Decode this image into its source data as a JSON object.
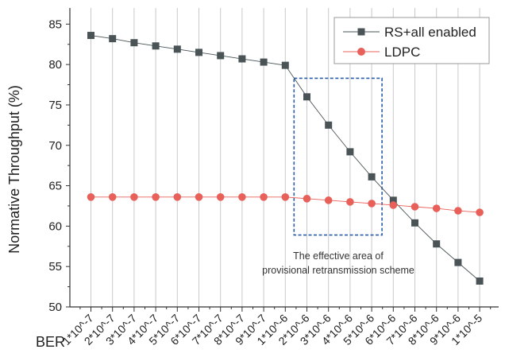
{
  "chart_data": {
    "type": "line",
    "xlabel": "BER",
    "ylabel": "Normative Throughput (%)",
    "ylim": [
      50,
      87
    ],
    "yticks": [
      50,
      55,
      60,
      65,
      70,
      75,
      80,
      85
    ],
    "grid": "vertical",
    "legend_position": "top-right",
    "categories": [
      "1*10^-7",
      "2*10^-7",
      "3*10^-7",
      "4*10^-7",
      "5*10^-7",
      "6*10^-7",
      "7*10^-7",
      "8*10^-7",
      "9*10^-7",
      "1*10^-6",
      "2*10^-6",
      "3*10^-6",
      "4*10^-6",
      "5*10^-6",
      "6*10^-6",
      "7*10^-6",
      "8*10^-6",
      "9*10^-6",
      "1*10^-5"
    ],
    "series": [
      {
        "name": "RS+all enabled",
        "marker": "square",
        "color": "#4a5457",
        "values": [
          83.6,
          83.2,
          82.7,
          82.3,
          81.9,
          81.5,
          81.1,
          80.7,
          80.3,
          79.9,
          76.0,
          72.5,
          69.2,
          66.1,
          63.2,
          60.4,
          57.8,
          55.5,
          53.2
        ]
      },
      {
        "name": "LDPC",
        "marker": "circle",
        "color": "#e8605a",
        "values": [
          63.6,
          63.6,
          63.6,
          63.6,
          63.6,
          63.6,
          63.6,
          63.6,
          63.6,
          63.6,
          63.4,
          63.2,
          63.0,
          62.8,
          62.6,
          62.4,
          62.2,
          61.9,
          61.7
        ]
      }
    ],
    "annotation": {
      "lines": [
        "The effective area of",
        "provisional retransmission scheme"
      ],
      "box_from": "1*10^-6",
      "box_to": "5*10^-6",
      "box_ylim": [
        58.9,
        78.3
      ],
      "box_color": "#2a5ca8"
    }
  }
}
